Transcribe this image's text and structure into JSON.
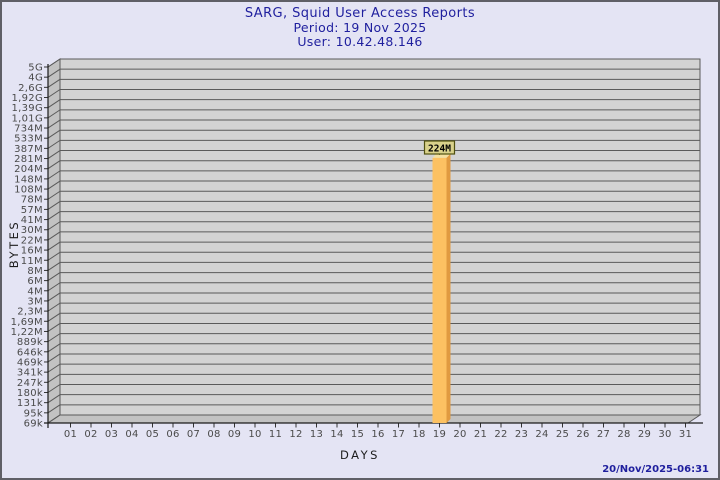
{
  "page": {
    "title": "SARG, Squid User Access Reports",
    "period": "Period: 19 Nov 2025",
    "user": "User: 10.42.48.146",
    "timestamp": "20/Nov/2025-06:31"
  },
  "colors": {
    "background": "#E4E4F4",
    "frame_border": "#5F5F66",
    "title_text": "#1F1F9E",
    "plot_face": "#D3D3D3",
    "plot_wall": "#C2C2C2",
    "gridline": "#5A5A5A",
    "axis_line": "#1A1A1A",
    "tick_label": "#4A4A4A",
    "bar_front": "#FCC162",
    "bar_side": "#E09A40",
    "bar_top": "#F4E0A0",
    "annotation_bg": "#D9D18B",
    "annotation_border": "#50500F",
    "annotation_text": "#000000"
  },
  "chart_data": {
    "type": "bar",
    "title": "SARG, Squid User Access Reports",
    "subtitle": [
      "Period: 19 Nov 2025",
      "User: 10.42.48.146"
    ],
    "xlabel": "DAYS",
    "ylabel": "BYTES",
    "y_scale": "logarithmic",
    "grid": true,
    "y_tick_labels": [
      "5G",
      "4G",
      "2,6G",
      "1,92G",
      "1,39G",
      "1,01G",
      "734M",
      "533M",
      "387M",
      "281M",
      "204M",
      "148M",
      "108M",
      "78M",
      "57M",
      "41M",
      "30M",
      "22M",
      "16M",
      "11M",
      "8M",
      "6M",
      "4M",
      "3M",
      "2,3M",
      "1,69M",
      "1,22M",
      "889k",
      "646k",
      "469k",
      "341k",
      "247k",
      "180k",
      "131k",
      "95k",
      "69k"
    ],
    "x_tick_labels": [
      "01",
      "02",
      "03",
      "04",
      "05",
      "06",
      "07",
      "08",
      "09",
      "10",
      "11",
      "12",
      "13",
      "14",
      "15",
      "16",
      "17",
      "18",
      "19",
      "20",
      "21",
      "22",
      "23",
      "24",
      "25",
      "26",
      "27",
      "28",
      "29",
      "30",
      "31"
    ],
    "bars": [
      {
        "day": "19",
        "value_label": "224M",
        "approx_bytes": 224000000
      }
    ]
  }
}
